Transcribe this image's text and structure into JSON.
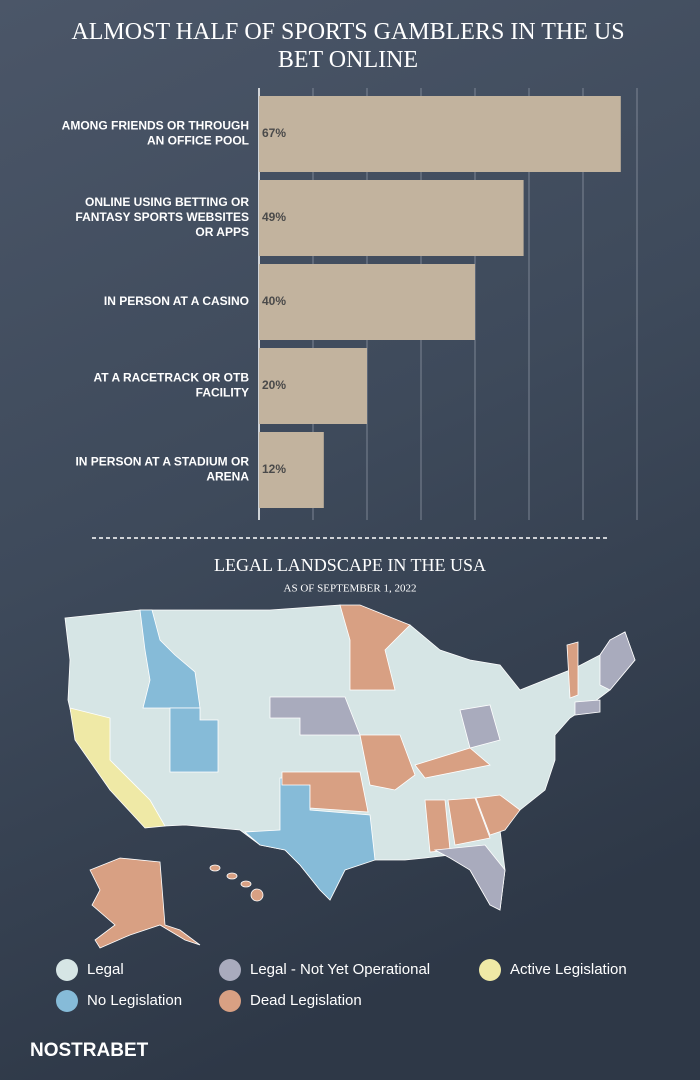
{
  "chart_data": [
    {
      "type": "hbar",
      "title": "ALMOST HALF OF SPORTS GAMBLERS IN THE US BET ONLINE",
      "categories": [
        "AMONG FRIENDS OR THROUGH AN OFFICE POOL",
        "ONLINE USING BETTING OR FANTASY SPORTS WEBSITES OR APPS",
        "IN PERSON AT A CASINO",
        "AT A RACETRACK OR OTB FACILITY",
        "IN PERSON AT A STADIUM OR ARENA"
      ],
      "values": [
        67,
        49,
        40,
        20,
        12
      ],
      "value_labels": [
        "67%",
        "49%",
        "40%",
        "20%",
        "12%"
      ],
      "color": "#c2b39e",
      "xlim": [
        0,
        70
      ],
      "xticks": [
        0,
        10,
        20,
        30,
        40,
        50,
        60,
        70
      ],
      "grid": true
    },
    {
      "type": "map",
      "title": "LEGAL LANDSCAPE IN THE USA",
      "subtitle": "AS OF SEPTEMBER 1, 2022",
      "legend": [
        {
          "name": "Legal",
          "color": "#d6e5e5"
        },
        {
          "name": "Legal - Not Yet Operational",
          "color": "#a9abbd"
        },
        {
          "name": "Active Legislation",
          "color": "#efe9a6"
        },
        {
          "name": "No Legislation",
          "color": "#86bbd8"
        },
        {
          "name": "Dead Legislation",
          "color": "#d8a083"
        }
      ]
    }
  ],
  "footer": {
    "logo": "NOSTRABET"
  }
}
